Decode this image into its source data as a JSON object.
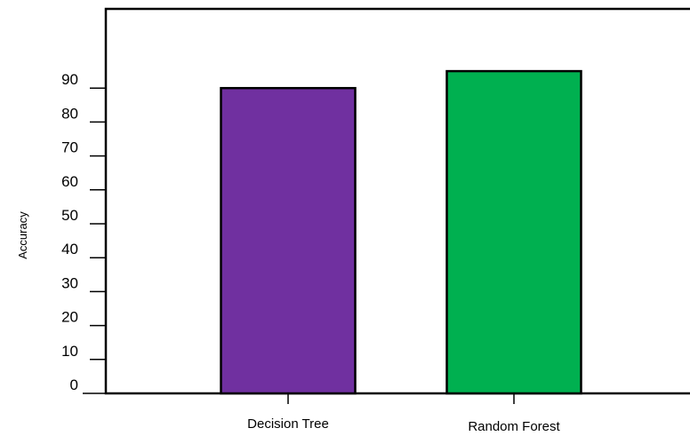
{
  "chart_data": {
    "type": "bar",
    "categories": [
      "Decision Tree",
      "Random Forest"
    ],
    "values": [
      90,
      95
    ],
    "colors": [
      "#7030a0",
      "#00b050"
    ],
    "ylabel": "Accuracy",
    "xlabel": "",
    "title": "",
    "yticks": [
      0,
      10,
      20,
      30,
      40,
      50,
      60,
      70,
      80,
      90
    ],
    "ylim": [
      0,
      105
    ],
    "grid": false,
    "legend": "none"
  }
}
